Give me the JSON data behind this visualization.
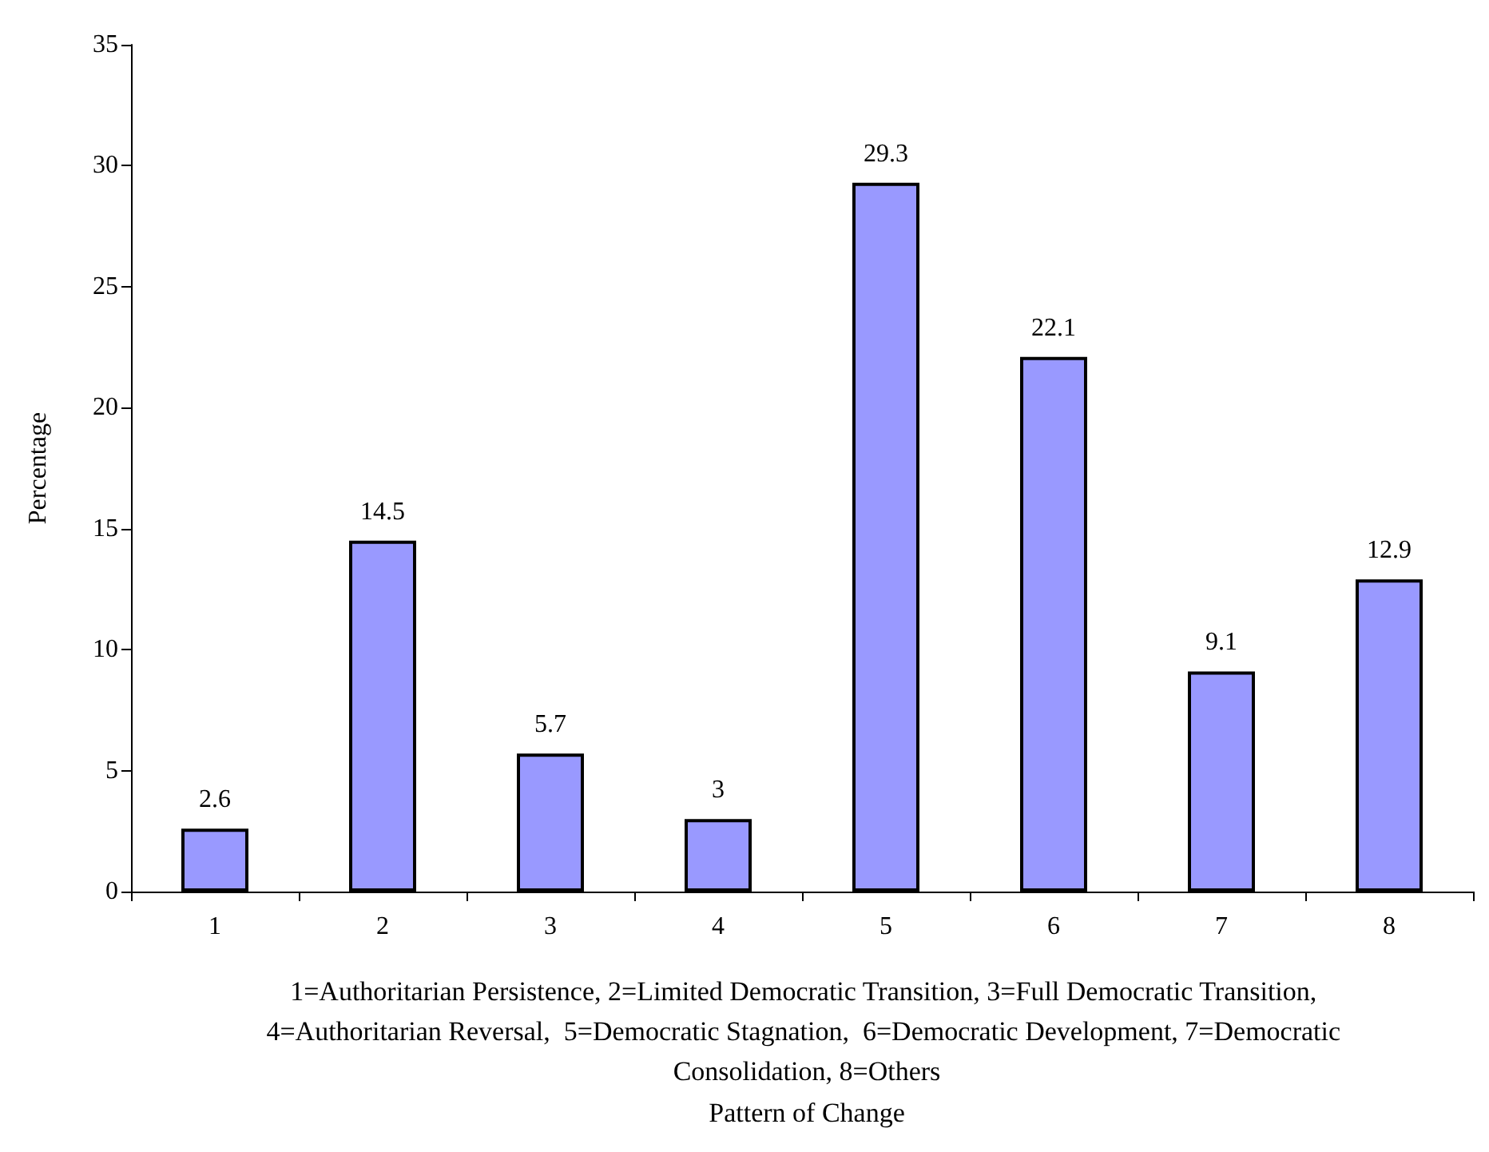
{
  "chart_data": {
    "type": "bar",
    "ylabel": "Percentage",
    "categories": [
      "1",
      "2",
      "3",
      "4",
      "5",
      "6",
      "7",
      "8"
    ],
    "values": [
      2.6,
      14.5,
      5.7,
      3,
      29.3,
      22.1,
      9.1,
      12.9
    ],
    "color": "#9999ff",
    "ylim": [
      0,
      35
    ],
    "yticks": [
      0,
      5,
      10,
      15,
      20,
      25,
      30,
      35
    ],
    "grid": false,
    "data_labels": true,
    "annotations": [
      "1=Authoritarian Persistence, 2=Limited Democratic Transition, 3=Full Democratic Transition, 4=Authoritarian Reversal,  5=Democratic Stagnation,  6=Democratic Development, 7=Democratic Consolidation, 8=Others",
      "Pattern of Change"
    ]
  }
}
